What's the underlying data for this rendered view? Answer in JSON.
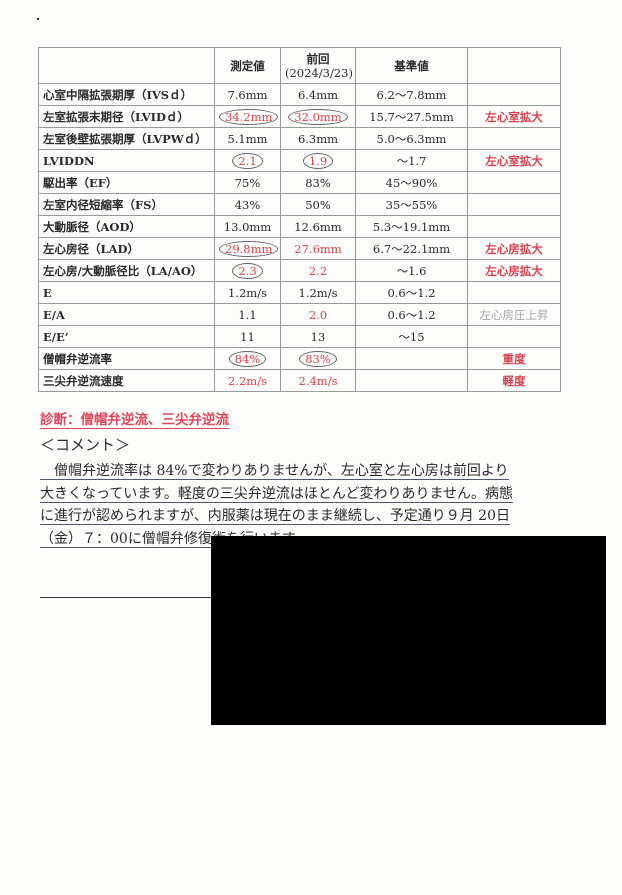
{
  "table": {
    "headers": [
      "",
      "測定値",
      "前回\n(2024/3/23)",
      "基準値",
      ""
    ],
    "header_prev": "前回",
    "header_prev_date": "(2024/3/23)",
    "rows": [
      {
        "label": "心室中隔拡張期厚（IVSｄ）",
        "current": "7.6mm",
        "previous": "6.4mm",
        "reference": "6.2～7.8mm",
        "note": ""
      },
      {
        "label": "左室拡張末期径（LVIDｄ）",
        "current": "34.2mm",
        "previous": "32.0mm",
        "reference": "15.7～27.5mm",
        "note": "左心室拡大"
      },
      {
        "label": "左室後壁拡張期厚（LVPWｄ）",
        "current": "5.1mm",
        "previous": "6.3mm",
        "reference": "5.0～6.3mm",
        "note": ""
      },
      {
        "label": "LVIDDN",
        "current": "2.1",
        "previous": "1.9",
        "reference": "～1.7",
        "note": "左心室拡大"
      },
      {
        "label": "駆出率（EF）",
        "current": "75%",
        "previous": "83%",
        "reference": "45～90%",
        "note": ""
      },
      {
        "label": "左室内径短縮率（FS）",
        "current": "43%",
        "previous": "50%",
        "reference": "35～55%",
        "note": ""
      },
      {
        "label": "大動脈径（AOD）",
        "current": "13.0mm",
        "previous": "12.6mm",
        "reference": "5.3～19.1mm",
        "note": ""
      },
      {
        "label": "左心房径（LAD）",
        "current": "29.8mm",
        "previous": "27.6mm",
        "reference": "6.7～22.1mm",
        "note": "左心房拡大"
      },
      {
        "label": "左心房/大動脈径比（LA/AO）",
        "current": "2.3",
        "previous": "2.2",
        "reference": "～1.6",
        "note": "左心房拡大"
      },
      {
        "label": "E",
        "current": "1.2m/s",
        "previous": "1.2m/s",
        "reference": "0.6～1.2",
        "note": ""
      },
      {
        "label": "E/A",
        "current": "1.1",
        "previous": "2.0",
        "reference": "0.6～1.2",
        "note": "左心房圧上昇"
      },
      {
        "label": "E/E’",
        "current": "11",
        "previous": "13",
        "reference": "～15",
        "note": ""
      },
      {
        "label": "僧帽弁逆流率",
        "current": "84%",
        "previous": "83%",
        "reference": "",
        "note": "重度"
      },
      {
        "label": "三尖弁逆流速度",
        "current": "2.2m/s",
        "previous": "2.4m/s",
        "reference": "",
        "note": "軽度"
      }
    ]
  },
  "diagnosis": "診断：僧帽弁逆流、三尖弁逆流",
  "comment_heading": "＜コメント＞",
  "comment": "　僧帽弁逆流率は 84%で変わりありませんが、左心室と左心房は前回より大きくなっています。軽度の三尖弁逆流はほとんど変わりありません。病態に進行が認められますが、内服薬は現在のまま継続し、予定通り９月 20日（金）７：00に僧帽弁修復術を行います。",
  "colors": {
    "highlight": "#d9434f",
    "redaction": "#000000"
  }
}
